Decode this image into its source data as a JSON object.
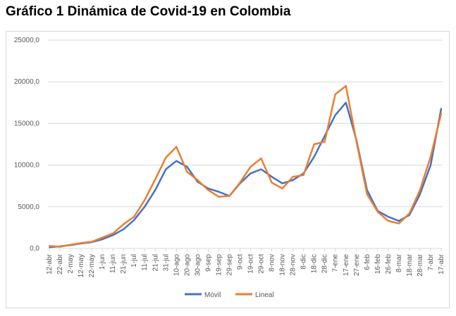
{
  "title": "Gráfico 1 Dinámica de Covid-19 en Colombia",
  "chart_data": {
    "type": "line",
    "ylim": [
      0,
      25000
    ],
    "y_ticks": [
      "0,0",
      "5000,0",
      "10000,0",
      "15000,0",
      "20000,0",
      "25000,0"
    ],
    "y_tick_values": [
      0,
      5000,
      10000,
      15000,
      20000,
      25000
    ],
    "grid": true,
    "legend_position": "bottom",
    "categories": [
      "12-abr",
      "22-abr",
      "2-may",
      "12-may",
      "22-may",
      "1-jun",
      "11-jun",
      "21-jun",
      "1-jul",
      "11-jul",
      "21-jul",
      "31-jul",
      "10-ago",
      "20-ago",
      "30-ago",
      "9-sep",
      "19-sep",
      "29-sep",
      "9-oct",
      "19-oct",
      "29-oct",
      "8-nov",
      "18-nov",
      "28-nov",
      "8-dic",
      "18-dic",
      "28-dic",
      "7-ene",
      "17-ene",
      "27-ene",
      "6-feb",
      "16-feb",
      "26-feb",
      "8-mar",
      "18-mar",
      "28-mar",
      "7-abr",
      "17-abr"
    ],
    "series": [
      {
        "name": "Móvil",
        "color": "#4472c4",
        "values": [
          150,
          250,
          400,
          600,
          750,
          1100,
          1600,
          2300,
          3400,
          5000,
          7000,
          9500,
          10500,
          9800,
          8000,
          7200,
          6800,
          6300,
          7800,
          9000,
          9500,
          8600,
          7800,
          8200,
          9000,
          11000,
          13500,
          16000,
          17500,
          13000,
          7000,
          4500,
          3800,
          3300,
          4000,
          6500,
          10000,
          16800
        ]
      },
      {
        "name": "Lineal",
        "color": "#ed7d31",
        "values": [
          300,
          200,
          450,
          650,
          800,
          1300,
          1800,
          2900,
          3800,
          5800,
          8300,
          10900,
          12200,
          9200,
          8200,
          7000,
          6200,
          6300,
          7900,
          9800,
          10800,
          7900,
          7200,
          8600,
          8800,
          12500,
          12800,
          18500,
          19500,
          12800,
          6500,
          4400,
          3300,
          3000,
          4200,
          7000,
          11000,
          16200
        ]
      }
    ]
  },
  "colors": {
    "movil": "#4472c4",
    "lineal": "#ed7d31",
    "grid": "#d9d9d9",
    "axis_text": "#595959"
  }
}
